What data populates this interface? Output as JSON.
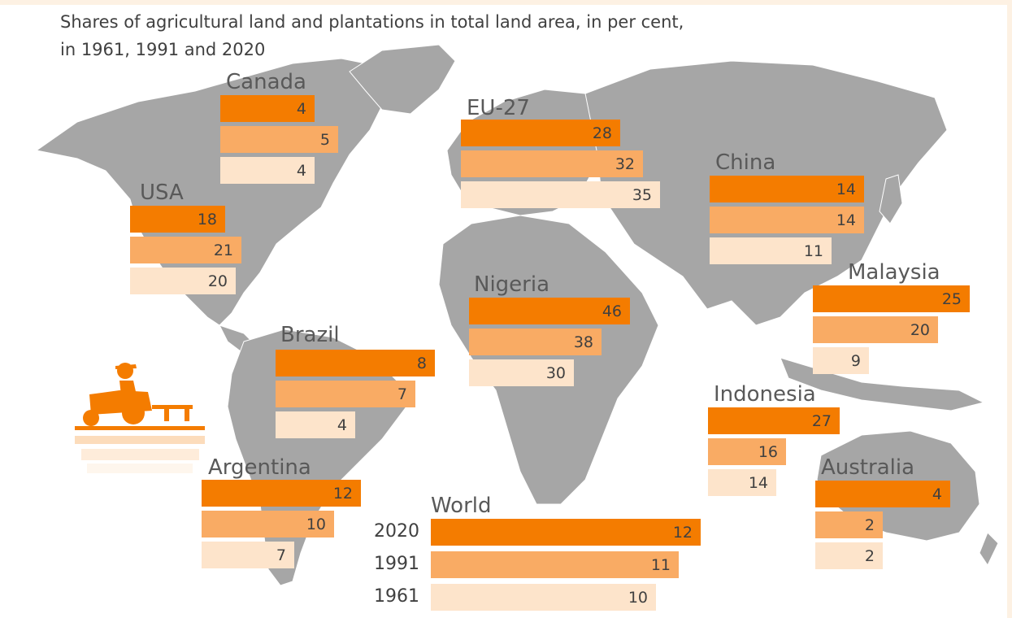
{
  "title": {
    "line1": "Shares of agricultural land and plantations in total land area, in per cent,",
    "line2": "in 1961, 1991 and 2020"
  },
  "colors": {
    "y2020": "#f47c00",
    "y1991": "#f9ab64",
    "y1961": "#fde4cb",
    "map": "#a6a6a6",
    "text": "#404040"
  },
  "chart_data": {
    "type": "bar",
    "orientation": "horizontal",
    "title": "Shares of agricultural land and plantations in total land area, in per cent, in 1961, 1991 and 2020",
    "series_order": [
      "2020",
      "1991",
      "1961"
    ],
    "year_labels": [
      "2020",
      "1991",
      "1961"
    ],
    "groups": [
      {
        "name": "Canada",
        "values": [
          4,
          5,
          4
        ]
      },
      {
        "name": "USA",
        "values": [
          18,
          21,
          20
        ]
      },
      {
        "name": "EU-27",
        "values": [
          28,
          32,
          35
        ]
      },
      {
        "name": "China",
        "values": [
          14,
          14,
          11
        ]
      },
      {
        "name": "Malaysia",
        "values": [
          25,
          20,
          9
        ]
      },
      {
        "name": "Nigeria",
        "values": [
          46,
          38,
          30
        ]
      },
      {
        "name": "Brazil",
        "values": [
          8,
          7,
          4
        ]
      },
      {
        "name": "Indonesia",
        "values": [
          27,
          16,
          14
        ]
      },
      {
        "name": "Argentina",
        "values": [
          12,
          10,
          7
        ]
      },
      {
        "name": "Australia",
        "values": [
          4,
          2,
          2
        ]
      },
      {
        "name": "World",
        "values": [
          12,
          11,
          10
        ]
      }
    ]
  }
}
